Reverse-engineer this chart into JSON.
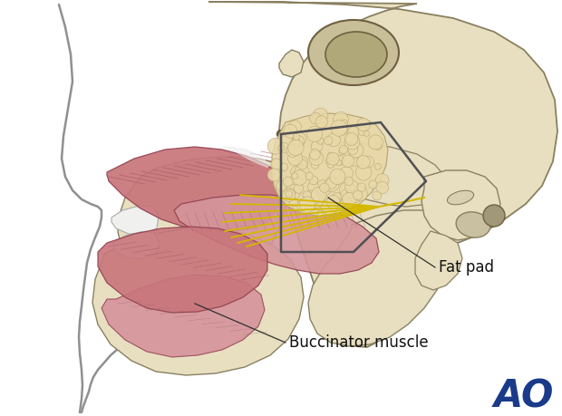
{
  "background_color": "#ffffff",
  "bone_color": "#e8dfc0",
  "bone_color2": "#ddd5aa",
  "bone_outline_color": "#888060",
  "muscle_color": "#c8757a",
  "muscle_light_color": "#d4959a",
  "muscle_dark_color": "#904050",
  "muscle_stripe_color": "#b06068",
  "fat_color": "#e8d8a8",
  "fat_outline_color": "#b0a070",
  "nerve_color": "#d4b800",
  "face_outline_color": "#909090",
  "label_fat": "Fat pad",
  "label_muscle": "Buccinator muscle",
  "ao_color": "#1a3a8a",
  "ao_text": "AO",
  "ao_fontsize": 30,
  "label_fontsize": 12,
  "line_color": "#404040"
}
